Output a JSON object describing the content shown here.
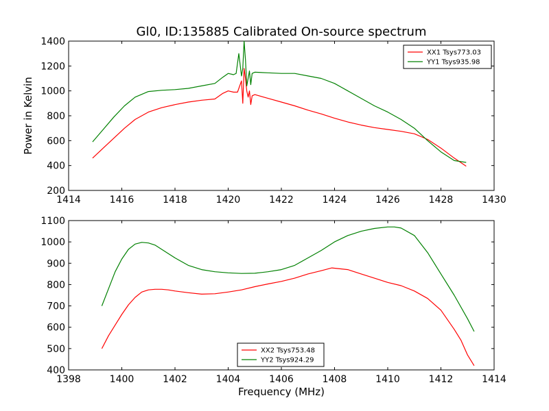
{
  "chart_data": [
    {
      "type": "line",
      "title": "Gl0, ID:135885 Calibrated On-source spectrum",
      "xlabel": "",
      "ylabel": "Power in Kelvin",
      "xlim": [
        1414,
        1430
      ],
      "ylim": [
        200,
        1400
      ],
      "xticks": [
        1414,
        1416,
        1418,
        1420,
        1422,
        1424,
        1426,
        1428,
        1430
      ],
      "yticks": [
        200,
        400,
        600,
        800,
        1000,
        1200,
        1400
      ],
      "legend_position": "top-right",
      "series": [
        {
          "name": "XX1 Tsys773.03",
          "color": "#ff0000",
          "x": [
            1414.9,
            1415.3,
            1415.7,
            1416.1,
            1416.5,
            1417.0,
            1417.5,
            1418.0,
            1418.5,
            1419.0,
            1419.5,
            1419.8,
            1420.0,
            1420.2,
            1420.35,
            1420.5,
            1420.55,
            1420.6,
            1420.65,
            1420.7,
            1420.75,
            1420.8,
            1420.85,
            1420.9,
            1421.0,
            1421.5,
            1422.0,
            1422.5,
            1423.0,
            1423.5,
            1424.0,
            1424.5,
            1425.0,
            1425.5,
            1426.0,
            1426.5,
            1427.0,
            1427.5,
            1428.0,
            1428.5,
            1428.95
          ],
          "y": [
            460,
            540,
            620,
            700,
            770,
            830,
            865,
            890,
            910,
            925,
            935,
            980,
            1000,
            990,
            990,
            1080,
            900,
            1180,
            1100,
            1000,
            950,
            1000,
            890,
            960,
            970,
            940,
            910,
            880,
            845,
            815,
            780,
            750,
            725,
            705,
            690,
            675,
            655,
            610,
            540,
            460,
            395
          ]
        },
        {
          "name": "YY1 Tsys935.98",
          "color": "#008000",
          "x": [
            1414.9,
            1415.3,
            1415.7,
            1416.1,
            1416.5,
            1417.0,
            1417.5,
            1418.0,
            1418.5,
            1419.0,
            1419.5,
            1419.8,
            1420.0,
            1420.2,
            1420.3,
            1420.4,
            1420.5,
            1420.55,
            1420.6,
            1420.65,
            1420.7,
            1420.75,
            1420.8,
            1420.85,
            1420.9,
            1421.0,
            1421.5,
            1422.0,
            1422.5,
            1423.0,
            1423.5,
            1424.0,
            1424.5,
            1425.0,
            1425.5,
            1426.0,
            1426.5,
            1427.0,
            1427.5,
            1428.0,
            1428.5,
            1428.95
          ],
          "y": [
            590,
            690,
            790,
            880,
            950,
            995,
            1005,
            1010,
            1020,
            1040,
            1060,
            1110,
            1140,
            1130,
            1140,
            1300,
            1120,
            1180,
            1400,
            1250,
            1040,
            1100,
            1160,
            1050,
            1140,
            1150,
            1145,
            1140,
            1140,
            1120,
            1100,
            1060,
            1000,
            940,
            880,
            830,
            770,
            700,
            600,
            510,
            440,
            425
          ]
        }
      ]
    },
    {
      "type": "line",
      "title": "",
      "xlabel": "Frequency (MHz)",
      "ylabel": "",
      "xlim": [
        1398,
        1414
      ],
      "ylim": [
        400,
        1100
      ],
      "xticks": [
        1398,
        1400,
        1402,
        1404,
        1406,
        1408,
        1410,
        1412,
        1414
      ],
      "yticks": [
        400,
        500,
        600,
        700,
        800,
        900,
        1000,
        1100
      ],
      "legend_position": "bottom-center",
      "series": [
        {
          "name": "XX2 Tsys753.48",
          "color": "#ff0000",
          "x": [
            1399.25,
            1399.5,
            1399.75,
            1400.0,
            1400.25,
            1400.5,
            1400.75,
            1401.0,
            1401.25,
            1401.5,
            1401.75,
            1402.0,
            1402.5,
            1403.0,
            1403.5,
            1404.0,
            1404.5,
            1405.0,
            1405.5,
            1406.0,
            1406.5,
            1407.0,
            1407.5,
            1407.9,
            1408.5,
            1409.0,
            1409.5,
            1410.0,
            1410.5,
            1411.0,
            1411.5,
            1412.0,
            1412.5,
            1412.75,
            1413.0,
            1413.25
          ],
          "y": [
            500,
            560,
            610,
            660,
            705,
            740,
            765,
            775,
            778,
            778,
            775,
            770,
            762,
            755,
            757,
            765,
            775,
            790,
            803,
            815,
            830,
            850,
            865,
            878,
            870,
            850,
            830,
            810,
            795,
            770,
            735,
            680,
            590,
            540,
            470,
            420
          ]
        },
        {
          "name": "YY2 Tsys924.29",
          "color": "#008000",
          "x": [
            1399.25,
            1399.5,
            1399.75,
            1400.0,
            1400.25,
            1400.5,
            1400.75,
            1401.0,
            1401.25,
            1401.5,
            1401.75,
            1402.0,
            1402.5,
            1403.0,
            1403.5,
            1404.0,
            1404.5,
            1405.0,
            1405.5,
            1406.0,
            1406.5,
            1407.0,
            1407.5,
            1408.0,
            1408.5,
            1409.0,
            1409.5,
            1410.0,
            1410.25,
            1410.5,
            1411.0,
            1411.5,
            1412.0,
            1412.5,
            1413.0,
            1413.25
          ],
          "y": [
            700,
            780,
            860,
            920,
            965,
            990,
            998,
            995,
            985,
            965,
            945,
            925,
            890,
            870,
            860,
            855,
            852,
            853,
            860,
            870,
            890,
            925,
            960,
            1000,
            1030,
            1050,
            1063,
            1070,
            1070,
            1065,
            1030,
            950,
            850,
            750,
            640,
            580
          ]
        }
      ]
    }
  ]
}
